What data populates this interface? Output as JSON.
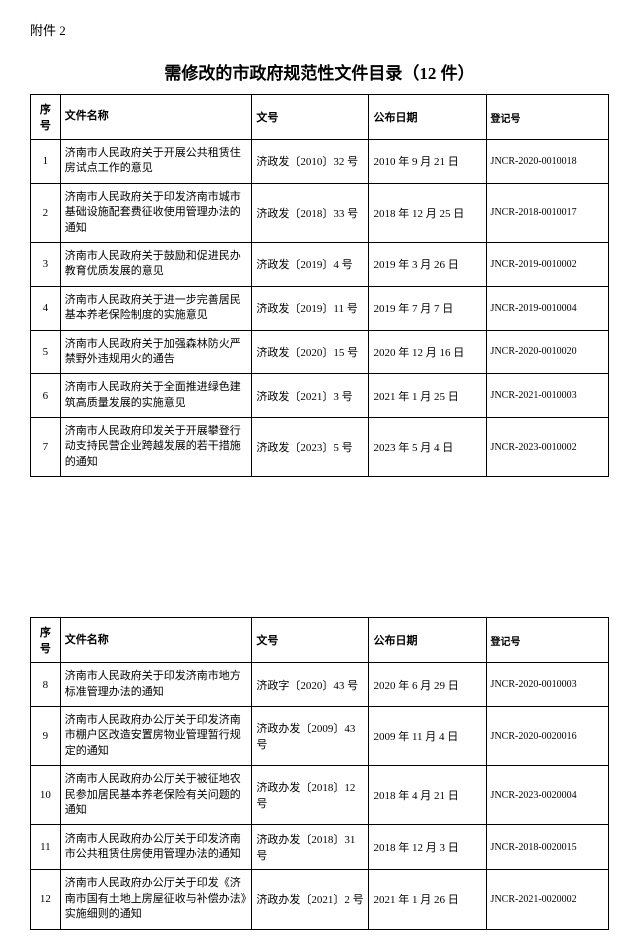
{
  "attachment_label": "附件 2",
  "title": "需修改的市政府规范性文件目录（12 件）",
  "headers": {
    "seq": "序号",
    "name": "文件名称",
    "docno": "文号",
    "date": "公布日期",
    "regno": "登记号"
  },
  "table1": [
    {
      "seq": "1",
      "name": "济南市人民政府关于开展公共租赁住房试点工作的意见",
      "docno": "济政发〔2010〕32 号",
      "date": "2010 年 9 月 21 日",
      "regno": "JNCR-2020-0010018"
    },
    {
      "seq": "2",
      "name": "济南市人民政府关于印发济南市城市基础设施配套费征收使用管理办法的通知",
      "docno": "济政发〔2018〕33 号",
      "date": "2018 年 12 月 25 日",
      "regno": "JNCR-2018-0010017"
    },
    {
      "seq": "3",
      "name": "济南市人民政府关于鼓励和促进民办教育优质发展的意见",
      "docno": "济政发〔2019〕4 号",
      "date": "2019 年 3 月 26 日",
      "regno": "JNCR-2019-0010002"
    },
    {
      "seq": "4",
      "name": "济南市人民政府关于进一步完善居民基本养老保险制度的实施意见",
      "docno": "济政发〔2019〕11 号",
      "date": "2019 年 7 月 7 日",
      "regno": "JNCR-2019-0010004"
    },
    {
      "seq": "5",
      "name": "济南市人民政府关于加强森林防火严禁野外违规用火的通告",
      "docno": "济政发〔2020〕15 号",
      "date": "2020 年 12 月 16 日",
      "regno": "JNCR-2020-0010020"
    },
    {
      "seq": "6",
      "name": "济南市人民政府关于全面推进绿色建筑高质量发展的实施意见",
      "docno": "济政发〔2021〕3 号",
      "date": "2021 年 1 月 25 日",
      "regno": "JNCR-2021-0010003"
    },
    {
      "seq": "7",
      "name": "济南市人民政府印发关于开展攀登行动支持民营企业跨越发展的若干措施的通知",
      "docno": "济政发〔2023〕5 号",
      "date": "2023 年 5 月 4 日",
      "regno": "JNCR-2023-0010002"
    }
  ],
  "table2": [
    {
      "seq": "8",
      "name": "济南市人民政府关于印发济南市地方标准管理办法的通知",
      "docno": "济政字〔2020〕43 号",
      "date": "2020 年 6 月 29 日",
      "regno": "JNCR-2020-0010003"
    },
    {
      "seq": "9",
      "name": "济南市人民政府办公厅关于印发济南市棚户区改造安置房物业管理暂行规定的通知",
      "docno": "济政办发〔2009〕43 号",
      "date": "2009 年 11 月 4 日",
      "regno": "JNCR-2020-0020016"
    },
    {
      "seq": "10",
      "name": "济南市人民政府办公厅关于被征地农民参加居民基本养老保险有关问题的通知",
      "docno": "济政办发〔2018〕12 号",
      "date": "2018 年 4 月 21 日",
      "regno": "JNCR-2023-0020004"
    },
    {
      "seq": "11",
      "name": "济南市人民政府办公厅关于印发济南市公共租赁住房使用管理办法的通知",
      "docno": "济政办发〔2018〕31 号",
      "date": "2018 年 12 月 3 日",
      "regno": "JNCR-2018-0020015"
    },
    {
      "seq": "12",
      "name": "济南市人民政府办公厅关于印发《济南市国有土地上房屋征收与补偿办法》实施细则的通知",
      "docno": "济政办发〔2021〕2 号",
      "date": "2021 年 1 月 26 日",
      "regno": "JNCR-2021-0020002"
    }
  ]
}
